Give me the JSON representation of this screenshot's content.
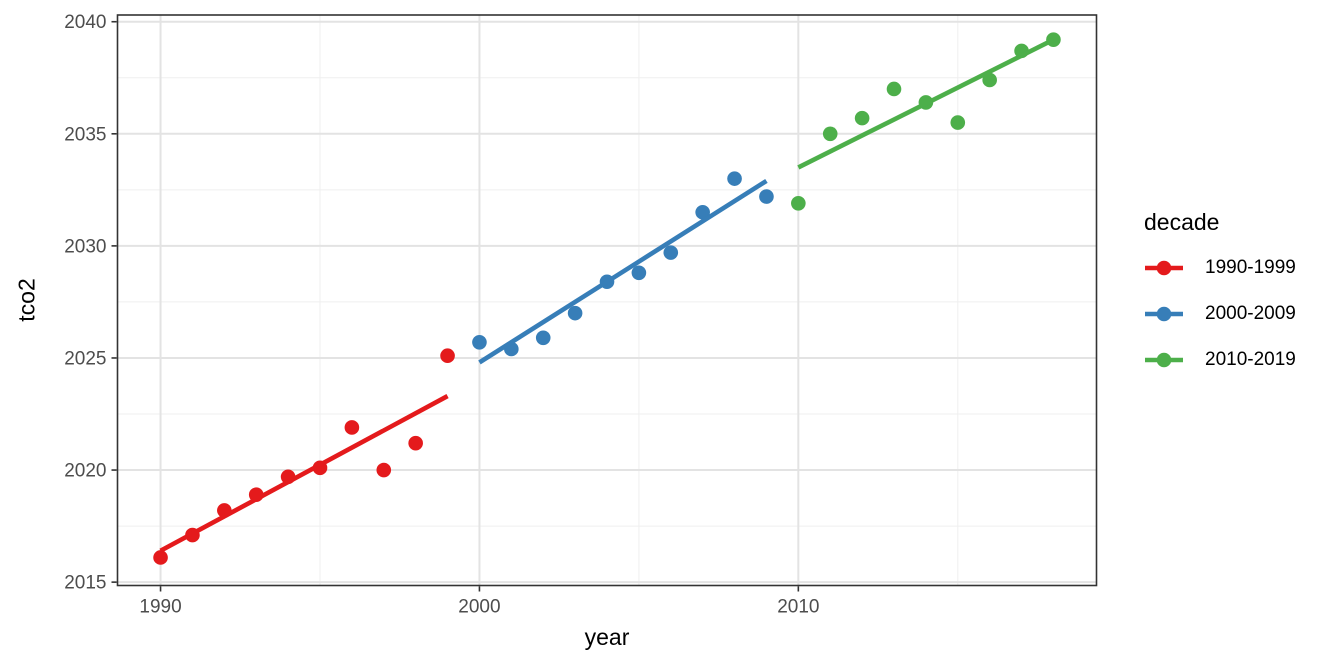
{
  "chart_data": {
    "type": "scatter",
    "title": "",
    "xlabel": "year",
    "ylabel": "tco2",
    "xlim": [
      1988.65,
      2019.35
    ],
    "ylim": [
      2014.85,
      2040.3
    ],
    "x_ticks": [
      1990,
      2000,
      2010
    ],
    "x_minor_ticks": [
      1995,
      2005,
      2015
    ],
    "y_ticks": [
      2015,
      2020,
      2025,
      2030,
      2035,
      2040
    ],
    "y_minor_ticks": [
      2017.5,
      2022.5,
      2027.5,
      2032.5,
      2037.5
    ],
    "grid": "major-and-minor",
    "legend_position": "right",
    "series": [
      {
        "name": "1990-1999",
        "color": "#E41A1C",
        "x": [
          1990,
          1991,
          1992,
          1993,
          1994,
          1995,
          1996,
          1997,
          1998,
          1999
        ],
        "y": [
          2016.1,
          2017.1,
          2018.2,
          2018.9,
          2019.7,
          2020.1,
          2021.9,
          2020.0,
          2021.2,
          2025.1
        ],
        "trend_line": {
          "x1": 1990,
          "y1": 2016.4,
          "x2": 1999,
          "y2": 2023.3
        }
      },
      {
        "name": "2000-2009",
        "color": "#377EB8",
        "x": [
          2000,
          2001,
          2002,
          2003,
          2004,
          2005,
          2006,
          2007,
          2008,
          2009
        ],
        "y": [
          2025.7,
          2025.4,
          2025.9,
          2027.0,
          2028.4,
          2028.8,
          2029.7,
          2031.5,
          2033.0,
          2032.2
        ],
        "trend_line": {
          "x1": 2000,
          "y1": 2024.8,
          "x2": 2009,
          "y2": 2032.9
        }
      },
      {
        "name": "2010-2019",
        "color": "#4DAF4A",
        "x": [
          2010,
          2011,
          2012,
          2013,
          2014,
          2015,
          2016,
          2017,
          2018
        ],
        "y": [
          2031.9,
          2035.0,
          2035.7,
          2037.0,
          2036.4,
          2035.5,
          2037.4,
          2038.7,
          2039.2
        ],
        "trend_line": {
          "x1": 2010,
          "y1": 2033.5,
          "x2": 2018,
          "y2": 2039.2
        }
      }
    ]
  },
  "axes": {
    "x_title": "year",
    "y_title": "tco2"
  },
  "legend": {
    "title": "decade",
    "items": [
      {
        "label": "1990-1999",
        "color": "#E41A1C"
      },
      {
        "label": "2000-2009",
        "color": "#377EB8"
      },
      {
        "label": "2010-2019",
        "color": "#4DAF4A"
      }
    ]
  },
  "style": {
    "background": "#ffffff",
    "grid_major_color": "#e3e3e3",
    "grid_minor_color": "#efefef",
    "panel_border_color": "#333333",
    "tick_mark_color": "#333333",
    "tick_label_color": "#4d4d4d",
    "axis_title_color": "#000000",
    "point_radius": 7.3,
    "trend_line_width": 4.6
  }
}
